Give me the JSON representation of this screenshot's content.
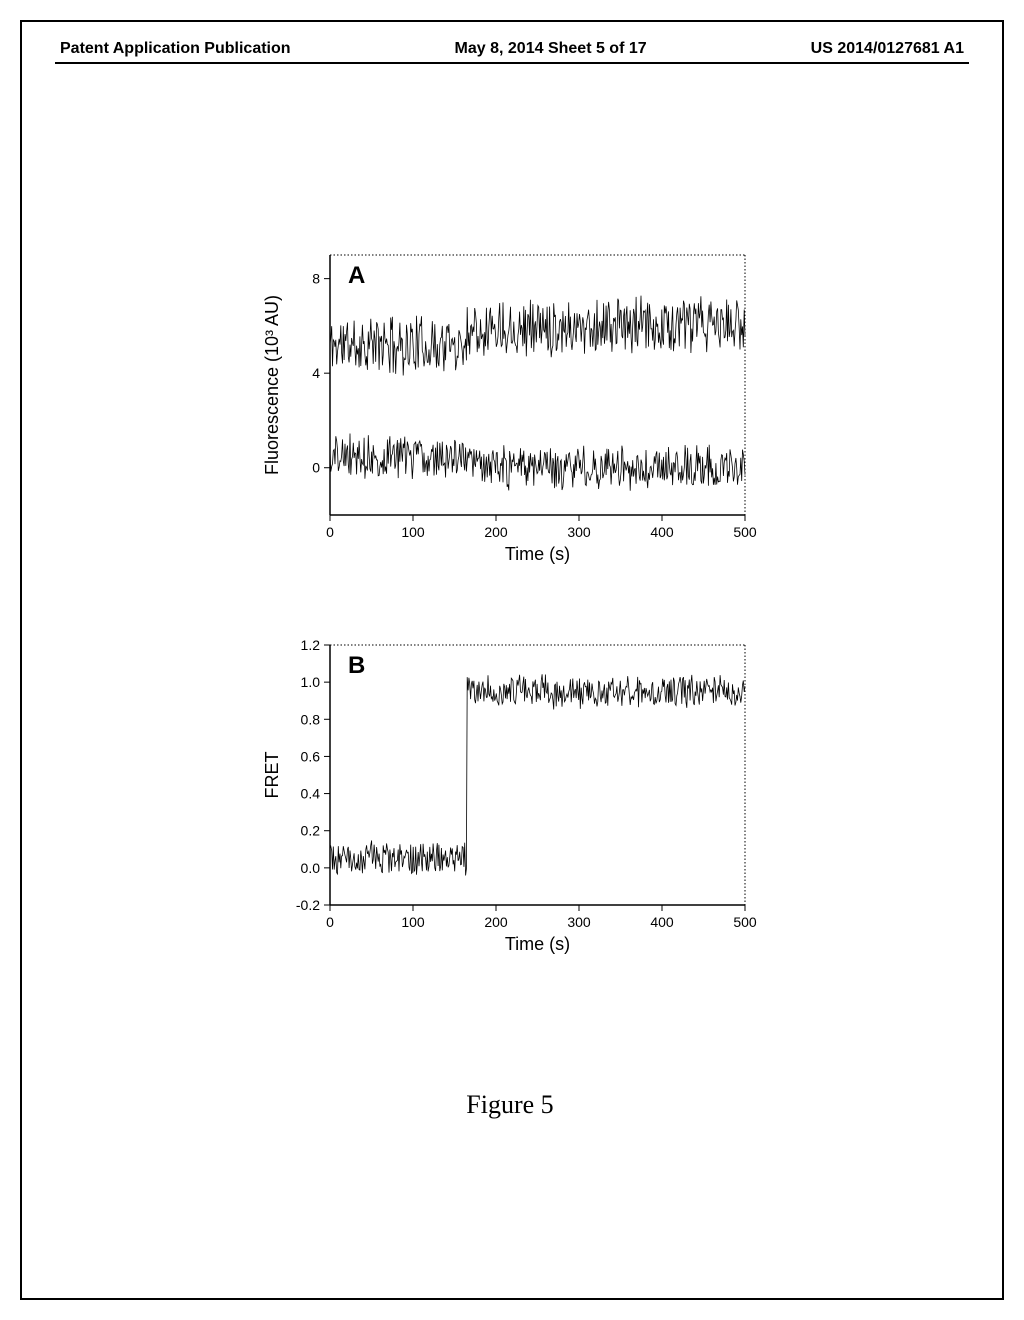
{
  "header": {
    "left": "Patent Application Publication",
    "center": "May 8, 2014  Sheet 5 of 17",
    "right": "US 2014/0127681 A1"
  },
  "figure_caption": "Figure 5",
  "chartA": {
    "type": "line",
    "panel_label": "A",
    "panel_label_fontsize": 24,
    "xlabel": "Time (s)",
    "ylabel": "Fluorescence (10³ AU)",
    "label_fontsize": 18,
    "tick_fontsize": 14,
    "xlim": [
      0,
      500
    ],
    "ylim": [
      -2,
      9
    ],
    "xticks": [
      0,
      100,
      200,
      300,
      400,
      500
    ],
    "yticks": [
      0,
      4,
      8
    ],
    "line_color": "#000000",
    "background_color": "#ffffff",
    "border_color": "#000000",
    "series": {
      "upper": {
        "baseline_before": 5.2,
        "baseline_after": 6.0,
        "noise_amp": 1.1,
        "transition_x": 165
      },
      "lower": {
        "baseline_before": 0.5,
        "baseline_after": 0.0,
        "noise_amp": 0.8,
        "transition_x": 165
      }
    }
  },
  "chartB": {
    "type": "line",
    "panel_label": "B",
    "panel_label_fontsize": 24,
    "xlabel": "Time (s)",
    "ylabel": "FRET",
    "label_fontsize": 18,
    "tick_fontsize": 14,
    "xlim": [
      0,
      500
    ],
    "ylim": [
      -0.2,
      1.2
    ],
    "xticks": [
      0,
      100,
      200,
      300,
      400,
      500
    ],
    "yticks": [
      -0.2,
      0.0,
      0.2,
      0.4,
      0.6,
      0.8,
      1.0,
      1.2
    ],
    "line_color": "#000000",
    "background_color": "#ffffff",
    "border_color": "#000000",
    "series": {
      "fret": {
        "baseline_before": 0.05,
        "baseline_after": 0.95,
        "noise_amp": 0.08,
        "transition_x": 165
      }
    }
  }
}
